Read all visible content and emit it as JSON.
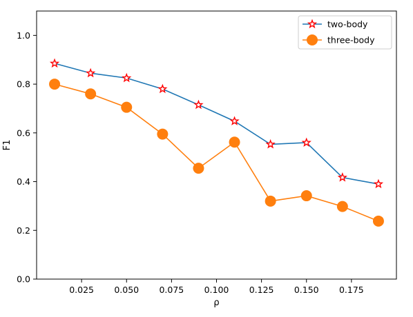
{
  "chart_data": {
    "type": "line",
    "xlabel": "ρ",
    "ylabel": "F1",
    "xlim": [
      0.0,
      0.2
    ],
    "ylim": [
      0.0,
      1.1
    ],
    "xticks": [
      0.025,
      0.05,
      0.075,
      0.1,
      0.125,
      0.15,
      0.175
    ],
    "xtick_labels": [
      "0.025",
      "0.050",
      "0.075",
      "0.100",
      "0.125",
      "0.150",
      "0.175"
    ],
    "yticks": [
      0.0,
      0.2,
      0.4,
      0.6,
      0.8,
      1.0
    ],
    "ytick_labels": [
      "0.0",
      "0.2",
      "0.4",
      "0.6",
      "0.8",
      "1.0"
    ],
    "grid": false,
    "legend_position": "top-right",
    "x": [
      0.01,
      0.03,
      0.05,
      0.07,
      0.09,
      0.11,
      0.13,
      0.15,
      0.17,
      0.19
    ],
    "series": [
      {
        "name": "two-body",
        "values": [
          0.885,
          0.845,
          0.825,
          0.78,
          0.715,
          0.648,
          0.553,
          0.56,
          0.417,
          0.39
        ],
        "color": "#1f77b4",
        "marker": "star",
        "marker_edge_color": "#ff0000",
        "marker_face_color": "#ffffff"
      },
      {
        "name": "three-body",
        "values": [
          0.8,
          0.76,
          0.705,
          0.595,
          0.455,
          0.562,
          0.32,
          0.342,
          0.298,
          0.238
        ],
        "color": "#ff7f0e",
        "marker": "circle"
      }
    ]
  }
}
